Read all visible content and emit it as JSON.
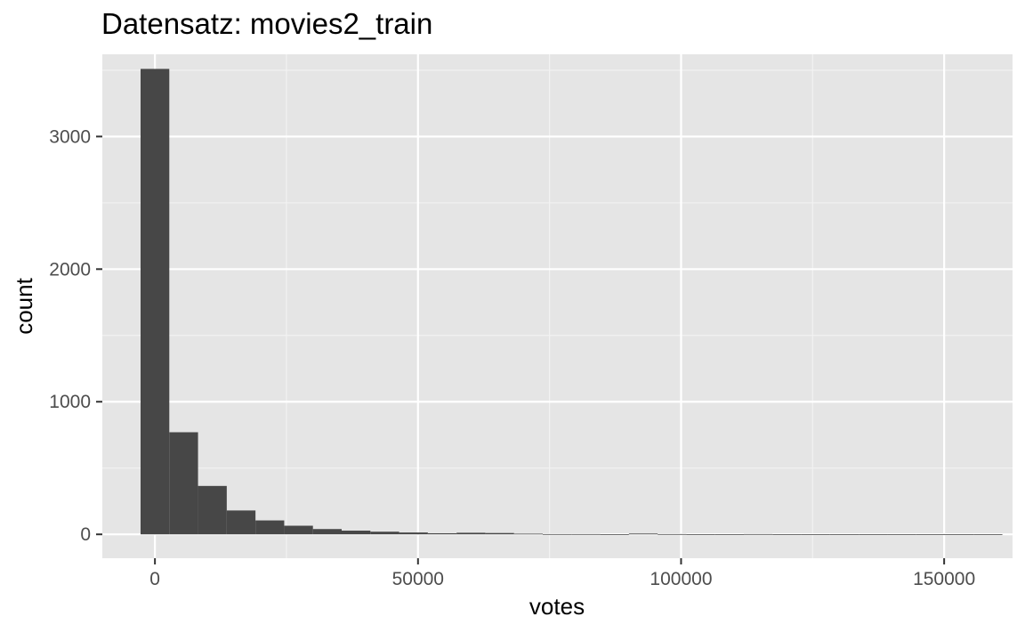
{
  "chart_data": {
    "type": "bar",
    "title": "Datensatz: movies2_train",
    "xlabel": "votes",
    "ylabel": "count",
    "xlim": [
      -10000,
      163000
    ],
    "ylim": [
      -180,
      3620
    ],
    "x_ticks": [
      0,
      50000,
      100000,
      150000
    ],
    "x_tick_labels": [
      "0",
      "50000",
      "100000",
      "150000"
    ],
    "y_ticks": [
      0,
      1000,
      2000,
      3000
    ],
    "y_tick_labels": [
      "0",
      "1000",
      "2000",
      "3000"
    ],
    "bin_width": 5460,
    "bin_centers": [
      0,
      5460,
      10920,
      16380,
      21840,
      27300,
      32760,
      38220,
      43680,
      49140,
      54600,
      60060,
      65520,
      70980,
      76440,
      81900,
      87360,
      92820,
      98280,
      103740,
      109200,
      114660,
      120120,
      125580,
      131040,
      136500,
      141960,
      147420,
      152880,
      158340
    ],
    "values": [
      3510,
      770,
      365,
      180,
      105,
      65,
      40,
      28,
      20,
      14,
      8,
      12,
      10,
      5,
      2,
      2,
      1,
      6,
      2,
      1,
      1,
      2,
      1,
      0,
      0,
      0,
      1,
      1,
      0,
      1
    ],
    "series_color": "#474747",
    "panel_background": "#e5e5e5",
    "grid": true,
    "legend": "none"
  }
}
